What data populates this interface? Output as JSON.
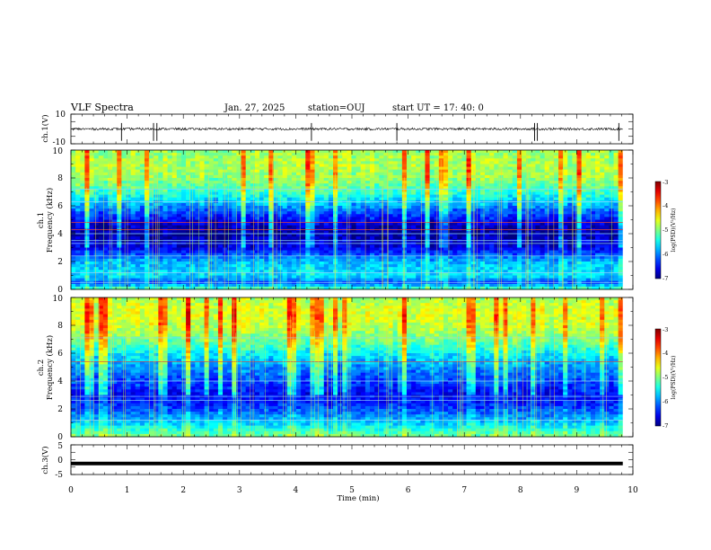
{
  "header": {
    "title": "VLF Spectra",
    "date": "Jan. 27, 2025",
    "station": "station=OUJ",
    "start": "start UT =  17: 40: 0"
  },
  "chart_data": [
    {
      "type": "line",
      "name": "ch1-waveform",
      "ylabel": "ch.1(V)",
      "ylim": [
        -10,
        10
      ],
      "yticks": [
        10,
        -10
      ],
      "xlim": [
        0,
        10
      ],
      "data_end_min": 9.82,
      "baseline_v": 0,
      "spike_times_min": [
        0.9,
        1.47,
        1.53,
        4.28,
        5.8,
        8.25,
        8.3,
        9.75
      ]
    },
    {
      "type": "heatmap",
      "name": "ch1-spectrogram",
      "ylabel": "ch.1",
      "ylabel2": "Frequency (kHz)",
      "ylim": [
        0,
        10
      ],
      "yticks": [
        "0",
        "2",
        "4",
        "6",
        "8",
        "10"
      ],
      "xlim": [
        0,
        10
      ],
      "colorbar": {
        "range": [
          -7,
          -3
        ],
        "ticks": [
          "-3",
          "-4",
          "-5",
          "-6",
          "-7"
        ],
        "label": "log(PSD)(V²/Hz)"
      },
      "band_profile_kHz_log": [
        [
          0,
          -5.2
        ],
        [
          0.5,
          -6.2
        ],
        [
          1,
          -5.6
        ],
        [
          2,
          -5.8
        ],
        [
          3,
          -6.6
        ],
        [
          4,
          -6.9
        ],
        [
          4.5,
          -6.8
        ],
        [
          5,
          -6.5
        ],
        [
          6,
          -5.9
        ],
        [
          7,
          -5.3
        ],
        [
          8,
          -4.9
        ],
        [
          9,
          -4.8
        ],
        [
          10,
          -4.9
        ]
      ],
      "lines_kHz": [
        0.5,
        1.2,
        2.4,
        3.3,
        3.5,
        4.0,
        4.3,
        4.8,
        6.3,
        7.2
      ]
    },
    {
      "type": "heatmap",
      "name": "ch2-spectrogram",
      "ylabel": "ch.2",
      "ylabel2": "Frequency (kHz)",
      "ylim": [
        0,
        10
      ],
      "yticks": [
        "0",
        "2",
        "4",
        "6",
        "8",
        "10"
      ],
      "xlim": [
        0,
        10
      ],
      "colorbar": {
        "range": [
          -7,
          -3
        ],
        "ticks": [
          "-3",
          "-4",
          "-5",
          "-6",
          "-7"
        ],
        "label": "log(PSD)(V²/Hz)"
      },
      "band_profile_kHz_log": [
        [
          0,
          -5.0
        ],
        [
          1,
          -5.7
        ],
        [
          2,
          -6.2
        ],
        [
          2.5,
          -6.4
        ],
        [
          3,
          -6.5
        ],
        [
          4,
          -6.2
        ],
        [
          5,
          -5.9
        ],
        [
          6,
          -5.5
        ],
        [
          7,
          -5.0
        ],
        [
          8,
          -4.7
        ],
        [
          9,
          -4.6
        ],
        [
          10,
          -4.8
        ]
      ],
      "lines_kHz": [
        1.2,
        2.6,
        2.9,
        4.0,
        5.4,
        7.1
      ]
    },
    {
      "type": "line",
      "name": "ch3-waveform",
      "ylabel": "ch.3(V)",
      "ylim": [
        -5,
        5
      ],
      "yticks": [
        5,
        0,
        -5
      ],
      "xlim": [
        0,
        10
      ],
      "data_end_min": 9.82,
      "baseline_v": -1.3
    }
  ],
  "x_axis": {
    "label": "Time (min)",
    "ticks": [
      "0",
      "1",
      "2",
      "3",
      "4",
      "5",
      "6",
      "7",
      "8",
      "9",
      "10"
    ]
  }
}
